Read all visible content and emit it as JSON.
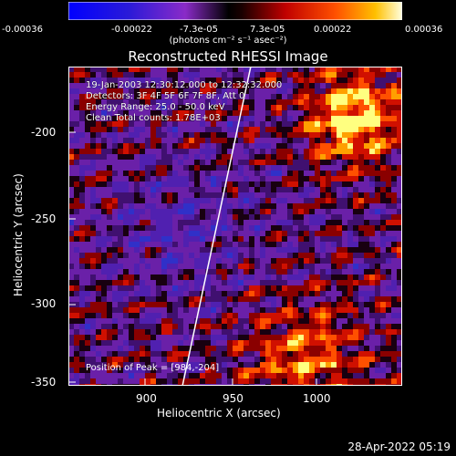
{
  "colorbar": {
    "tick_labels": [
      "-0.00036",
      "-0.00022",
      "-7.3e-05",
      "7.3e-05",
      "0.00022",
      "0.00036"
    ],
    "units": "(photons cm⁻² s⁻¹ asec⁻²)"
  },
  "title": "Reconstructed RHESSI Image",
  "info": {
    "time": "19-Jan-2003 12:30:12.000 to 12:32:32.000",
    "detectors": "Detectors: 3F 4F 5F 6F 7F 8F, Att 0",
    "energy": "Energy Range: 25.0 - 50.0 keV",
    "clean": "Clean     Total counts: 1.78E+03"
  },
  "peak": "Position of Peak = [984,-204]",
  "xlabel": "Heliocentric X (arcsec)",
  "ylabel": "Heliocentric Y (arcsec)",
  "xticks": [
    "900",
    "950",
    "1000"
  ],
  "yticks": [
    "-200",
    "-250",
    "-300",
    "-350"
  ],
  "datestamp": "28-Apr-2022 05:19",
  "chart_data": {
    "type": "heatmap",
    "title": "Reconstructed RHESSI Image",
    "xlabel": "Heliocentric X (arcsec)",
    "ylabel": "Heliocentric Y (arcsec)",
    "xlim": [
      858,
      1042
    ],
    "ylim": [
      -352,
      -163
    ],
    "colorbar_range": [
      -0.00036,
      0.00036
    ],
    "peak": [
      984,
      -204
    ]
  }
}
